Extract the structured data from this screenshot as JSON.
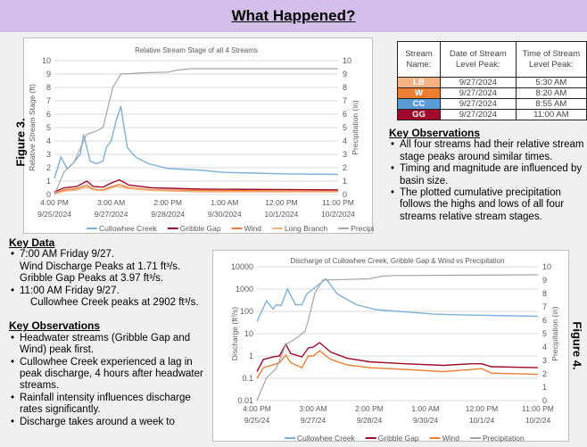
{
  "header": {
    "title": "What Happened?"
  },
  "figure3_label": "Figure 3.",
  "figure4_label": "Figure 4.",
  "peak_table": {
    "headers": [
      "Stream Name:",
      "Date of Stream Level Peak:",
      "Time of Stream Level Peak:"
    ],
    "rows": [
      {
        "code": "LB",
        "color": "#f4b183",
        "date": "9/27/2024",
        "time": "5:30 AM"
      },
      {
        "code": "W",
        "color": "#ed7d31",
        "date": "9/27/2024",
        "time": "8:20 AM"
      },
      {
        "code": "CC",
        "color": "#5b9bd5",
        "date": "9/27/2024",
        "time": "8:55 AM"
      },
      {
        "code": "GG",
        "color": "#9e0a2c",
        "date": "9/27/2024",
        "time": "11:00 AM"
      }
    ]
  },
  "right_observations": {
    "heading": "Key Observations",
    "items": [
      "All four streams had their relative stream stage peaks around similar times.",
      "Timing and magnitude are influenced by basin size.",
      "The plotted cumulative precipitation follows the highs and lows of all four streams relative stream stages."
    ]
  },
  "key_data": {
    "heading": "Key Data",
    "items": [
      {
        "head": "7:00 AM Friday 9/27.",
        "lines": [
          "Wind Discharge Peaks at 1.71 ft³/s.",
          "Gribble Gap Peaks at 3.97 ft³/s."
        ]
      },
      {
        "head": "11:00 AM Friday 9/27.",
        "lines": [
          "Cullowhee Creek peaks at 2902 ft³/s."
        ]
      }
    ]
  },
  "left_observations": {
    "heading": "Key Observations",
    "items": [
      "Headwater streams (Gribble Gap and Wind) peak first.",
      "Cullowhee Creek experienced a lag in peak discharge, 4 hours after headwater streams.",
      "Rainfall intensity influences discharge rates significantly.",
      "Discharge takes around a week to"
    ]
  },
  "chart_data": [
    {
      "type": "line",
      "title": "Relative Stream Stage of all 4 Streams",
      "ylabel": "Relative Stream Stage (ft)",
      "y2label": "Precipitation (in)",
      "ylim": [
        0,
        10
      ],
      "y2lim": [
        0,
        10
      ],
      "yscale": "linear",
      "grid": true,
      "legend": "bottom",
      "xlim": [
        "2024-09-25T16:00",
        "2024-10-02T23:00"
      ],
      "xticks": [
        {
          "t": "2024-09-25T16:00",
          "l1": "4:00 PM",
          "l2": "9/25/2024"
        },
        {
          "t": "2024-09-27T03:00",
          "l1": "3:00 AM",
          "l2": "9/27/2024"
        },
        {
          "t": "2024-09-28T14:00",
          "l1": "2:00 PM",
          "l2": "9/28/2024"
        },
        {
          "t": "2024-09-30T01:00",
          "l1": "1:00 AM",
          "l2": "9/30/2024"
        },
        {
          "t": "2024-10-01T12:00",
          "l1": "12:00 PM",
          "l2": "10/1/2024"
        },
        {
          "t": "2024-10-02T23:00",
          "l1": "11:00 PM",
          "l2": "10/2/2024"
        }
      ],
      "yticks": [
        0,
        1,
        2,
        3,
        4,
        5,
        6,
        7,
        8,
        9,
        10
      ],
      "series": [
        {
          "name": "Cullowhee Creek",
          "color": "#7fb0d8",
          "axis": "y",
          "points": [
            [
              "2024-09-25T16:00",
              1.2
            ],
            [
              "2024-09-25T20:00",
              2.8
            ],
            [
              "2024-09-26T00:00",
              1.9
            ],
            [
              "2024-09-26T04:00",
              2.4
            ],
            [
              "2024-09-26T08:00",
              3.0
            ],
            [
              "2024-09-26T10:00",
              4.5
            ],
            [
              "2024-09-26T14:00",
              2.5
            ],
            [
              "2024-09-26T18:00",
              2.3
            ],
            [
              "2024-09-26T22:00",
              2.5
            ],
            [
              "2024-09-27T00:00",
              3.5
            ],
            [
              "2024-09-27T03:00",
              4.0
            ],
            [
              "2024-09-27T06:00",
              5.5
            ],
            [
              "2024-09-27T09:00",
              6.6
            ],
            [
              "2024-09-27T11:00",
              5.0
            ],
            [
              "2024-09-27T13:00",
              3.5
            ],
            [
              "2024-09-27T18:00",
              2.8
            ],
            [
              "2024-09-28T02:00",
              2.3
            ],
            [
              "2024-09-28T14:00",
              1.95
            ],
            [
              "2024-09-29T12:00",
              1.8
            ],
            [
              "2024-09-30T01:00",
              1.65
            ],
            [
              "2024-09-30T20:00",
              1.6
            ],
            [
              "2024-10-01T12:00",
              1.55
            ],
            [
              "2024-10-02T23:00",
              1.5
            ]
          ]
        },
        {
          "name": "Gribble Gap",
          "color": "#9e0a2c",
          "axis": "y",
          "points": [
            [
              "2024-09-25T16:00",
              0.2
            ],
            [
              "2024-09-25T22:00",
              0.5
            ],
            [
              "2024-09-26T06:00",
              0.6
            ],
            [
              "2024-09-26T12:00",
              1.0
            ],
            [
              "2024-09-26T16:00",
              0.6
            ],
            [
              "2024-09-26T22:00",
              0.55
            ],
            [
              "2024-09-27T02:00",
              0.8
            ],
            [
              "2024-09-27T08:00",
              1.1
            ],
            [
              "2024-09-27T14:00",
              0.7
            ],
            [
              "2024-09-28T04:00",
              0.5
            ],
            [
              "2024-09-29T12:00",
              0.4
            ],
            [
              "2024-10-02T23:00",
              0.35
            ]
          ]
        },
        {
          "name": "Wind",
          "color": "#ed7d31",
          "axis": "y",
          "points": [
            [
              "2024-09-25T16:00",
              0.1
            ],
            [
              "2024-09-25T22:00",
              0.35
            ],
            [
              "2024-09-26T06:00",
              0.45
            ],
            [
              "2024-09-26T12:00",
              0.7
            ],
            [
              "2024-09-26T16:00",
              0.4
            ],
            [
              "2024-09-26T22:00",
              0.35
            ],
            [
              "2024-09-27T02:00",
              0.55
            ],
            [
              "2024-09-27T08:00",
              0.75
            ],
            [
              "2024-09-27T14:00",
              0.5
            ],
            [
              "2024-09-28T04:00",
              0.35
            ],
            [
              "2024-09-29T12:00",
              0.3
            ],
            [
              "2024-10-02T23:00",
              0.25
            ]
          ]
        },
        {
          "name": "Long Branch",
          "color": "#f4b183",
          "axis": "y",
          "points": [
            [
              "2024-09-25T16:00",
              0.05
            ],
            [
              "2024-09-25T22:00",
              0.25
            ],
            [
              "2024-09-26T06:00",
              0.35
            ],
            [
              "2024-09-26T12:00",
              0.55
            ],
            [
              "2024-09-26T16:00",
              0.35
            ],
            [
              "2024-09-26T22:00",
              0.3
            ],
            [
              "2024-09-27T02:00",
              0.45
            ],
            [
              "2024-09-27T06:00",
              0.6
            ],
            [
              "2024-09-27T14:00",
              0.45
            ],
            [
              "2024-09-28T04:00",
              0.3
            ],
            [
              "2024-09-29T12:00",
              0.2
            ],
            [
              "2024-10-02T23:00",
              0.2
            ]
          ]
        },
        {
          "name": "Precipitation",
          "color": "#a5a5a5",
          "axis": "y2",
          "points": [
            [
              "2024-09-25T16:00",
              0
            ],
            [
              "2024-09-25T22:00",
              1.7
            ],
            [
              "2024-09-26T04:00",
              2.4
            ],
            [
              "2024-09-26T12:00",
              4.5
            ],
            [
              "2024-09-26T17:00",
              4.7
            ],
            [
              "2024-09-26T22:00",
              5.0
            ],
            [
              "2024-09-27T00:00",
              6.0
            ],
            [
              "2024-09-27T04:00",
              8.0
            ],
            [
              "2024-09-27T09:00",
              9.0
            ],
            [
              "2024-09-28T00:00",
              9.1
            ],
            [
              "2024-09-28T14:00",
              9.15
            ],
            [
              "2024-09-28T20:00",
              9.3
            ],
            [
              "2024-09-29T04:00",
              9.4
            ],
            [
              "2024-10-02T23:00",
              9.4
            ]
          ]
        }
      ]
    },
    {
      "type": "line",
      "title": "Discharge of Cullowhee Creek, Gribble Gap & Wind vs Precipitation",
      "ylabel": "Discharge (ft³/s)",
      "y2label": "Precipitation (in)",
      "ylim": [
        0.01,
        10000
      ],
      "y2lim": [
        0,
        10
      ],
      "yscale": "log",
      "grid": true,
      "legend": "bottom",
      "xlim": [
        "2024-09-25T16:00",
        "2024-10-02T23:00"
      ],
      "xticks": [
        {
          "t": "2024-09-25T16:00",
          "l1": "4:00 PM",
          "l2": "9/25/24"
        },
        {
          "t": "2024-09-27T03:00",
          "l1": "3:00 AM",
          "l2": "9/27/24"
        },
        {
          "t": "2024-09-28T14:00",
          "l1": "2:00 PM",
          "l2": "9/28/24"
        },
        {
          "t": "2024-09-30T01:00",
          "l1": "1:00 AM",
          "l2": "9/30/24"
        },
        {
          "t": "2024-10-01T12:00",
          "l1": "12:00 PM",
          "l2": "10/1/24"
        },
        {
          "t": "2024-10-02T23:00",
          "l1": "11:00 PM",
          "l2": "10/2/24"
        }
      ],
      "yticks": [
        0.01,
        0.1,
        1,
        10,
        100,
        1000,
        10000
      ],
      "y2ticks": [
        0,
        1,
        2,
        3,
        4,
        5,
        6,
        7,
        8,
        9,
        10
      ],
      "series": [
        {
          "name": "Cullowhee Creek",
          "color": "#7fb0d8",
          "axis": "y",
          "points": [
            [
              "2024-09-25T16:00",
              35
            ],
            [
              "2024-09-25T22:00",
              300
            ],
            [
              "2024-09-26T02:00",
              130
            ],
            [
              "2024-09-26T04:00",
              200
            ],
            [
              "2024-09-26T07:00",
              180
            ],
            [
              "2024-09-26T11:00",
              1000
            ],
            [
              "2024-09-26T16:00",
              200
            ],
            [
              "2024-09-26T20:00",
              200
            ],
            [
              "2024-09-26T23:00",
              600
            ],
            [
              "2024-09-27T03:00",
              1000
            ],
            [
              "2024-09-27T11:00",
              2902
            ],
            [
              "2024-09-27T18:00",
              600
            ],
            [
              "2024-09-28T06:00",
              200
            ],
            [
              "2024-09-28T18:00",
              120
            ],
            [
              "2024-09-29T16:00",
              90
            ],
            [
              "2024-09-30T06:00",
              75
            ],
            [
              "2024-10-01T00:00",
              70
            ],
            [
              "2024-10-02T23:00",
              60
            ]
          ]
        },
        {
          "name": "Gribble Gap",
          "color": "#9e0a2c",
          "axis": "y",
          "points": [
            [
              "2024-09-25T16:00",
              0.2
            ],
            [
              "2024-09-25T20:00",
              0.7
            ],
            [
              "2024-09-26T02:00",
              0.9
            ],
            [
              "2024-09-26T06:00",
              1.0
            ],
            [
              "2024-09-26T10:00",
              3.4
            ],
            [
              "2024-09-26T13:00",
              1.3
            ],
            [
              "2024-09-26T20:00",
              0.9
            ],
            [
              "2024-09-27T00:00",
              2.3
            ],
            [
              "2024-09-27T03:00",
              2.5
            ],
            [
              "2024-09-27T07:00",
              3.97
            ],
            [
              "2024-09-27T14:00",
              1.5
            ],
            [
              "2024-09-28T00:00",
              0.8
            ],
            [
              "2024-09-28T14:00",
              0.55
            ],
            [
              "2024-09-29T12:00",
              0.45
            ],
            [
              "2024-09-30T12:00",
              0.38
            ],
            [
              "2024-10-01T06:00",
              0.45
            ],
            [
              "2024-10-01T12:00",
              0.45
            ],
            [
              "2024-10-01T18:00",
              0.33
            ],
            [
              "2024-10-02T23:00",
              0.3
            ]
          ]
        },
        {
          "name": "Wind",
          "color": "#ed7d31",
          "axis": "y",
          "points": [
            [
              "2024-09-25T16:00",
              0.1
            ],
            [
              "2024-09-25T20:00",
              0.3
            ],
            [
              "2024-09-26T02:00",
              0.4
            ],
            [
              "2024-09-26T06:00",
              0.5
            ],
            [
              "2024-09-26T10:00",
              1.1
            ],
            [
              "2024-09-26T13:00",
              0.5
            ],
            [
              "2024-09-26T20:00",
              0.3
            ],
            [
              "2024-09-27T00:00",
              1.0
            ],
            [
              "2024-09-27T03:00",
              1.0
            ],
            [
              "2024-09-27T07:00",
              1.71
            ],
            [
              "2024-09-27T14:00",
              0.7
            ],
            [
              "2024-09-28T00:00",
              0.4
            ],
            [
              "2024-09-28T14:00",
              0.3
            ],
            [
              "2024-09-29T12:00",
              0.25
            ],
            [
              "2024-09-30T12:00",
              0.2
            ],
            [
              "2024-10-01T06:00",
              0.25
            ],
            [
              "2024-10-01T12:00",
              0.27
            ],
            [
              "2024-10-01T18:00",
              0.17
            ],
            [
              "2024-10-02T23:00",
              0.15
            ]
          ]
        },
        {
          "name": "Precipitation",
          "color": "#a5a5a5",
          "axis": "y2",
          "points": [
            [
              "2024-09-25T16:00",
              0
            ],
            [
              "2024-09-25T22:00",
              1.7
            ],
            [
              "2024-09-26T04:00",
              2.4
            ],
            [
              "2024-09-26T10:00",
              4.2
            ],
            [
              "2024-09-26T17:00",
              4.7
            ],
            [
              "2024-09-26T22:00",
              5.2
            ],
            [
              "2024-09-27T00:00",
              6.0
            ],
            [
              "2024-09-27T04:00",
              8.0
            ],
            [
              "2024-09-27T09:00",
              9.0
            ],
            [
              "2024-09-28T14:00",
              9.1
            ],
            [
              "2024-09-28T22:00",
              9.3
            ],
            [
              "2024-09-29T06:00",
              9.35
            ],
            [
              "2024-10-02T23:00",
              9.4
            ]
          ]
        }
      ]
    }
  ]
}
